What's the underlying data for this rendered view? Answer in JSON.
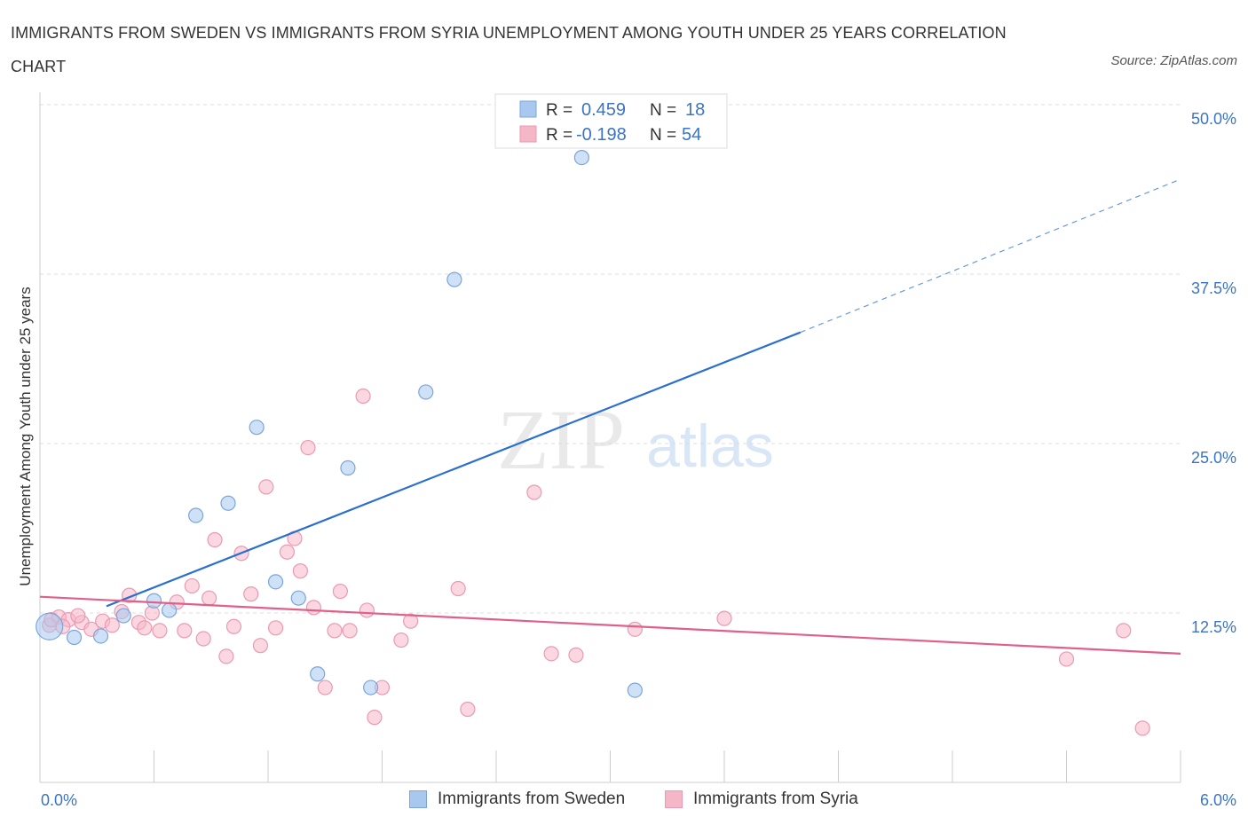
{
  "header": {
    "title": "IMMIGRANTS FROM SWEDEN VS IMMIGRANTS FROM SYRIA UNEMPLOYMENT AMONG YOUTH UNDER 25 YEARS CORRELATION CHART",
    "source": "Source: ZipAtlas.com"
  },
  "watermark": {
    "zip": "ZIP",
    "atlas": "atlas"
  },
  "stats": {
    "r_label": "R =",
    "n_label": "N =",
    "sweden": {
      "r": "0.459",
      "n": "18"
    },
    "syria": {
      "r": "-0.198",
      "n": "54"
    }
  },
  "colors": {
    "sweden_fill": "#a8c8f0",
    "sweden_stroke": "#7aa6dc",
    "sweden_line": "#2b6fce",
    "syria_fill": "#f5b6c8",
    "syria_stroke": "#ea9ab2",
    "syria_line": "#e0608a",
    "axis_label": "#3c74c4"
  },
  "chart_data": {
    "type": "scatter",
    "title": "IMMIGRANTS FROM SWEDEN VS IMMIGRANTS FROM SYRIA UNEMPLOYMENT AMONG YOUTH UNDER 25 YEARS CORRELATION CHART",
    "xlabel": "",
    "ylabel": "Unemployment Among Youth under 25 years",
    "xlim": [
      0,
      6
    ],
    "ylim": [
      0,
      50
    ],
    "x_tick_labels": [
      "0.0%",
      "6.0%"
    ],
    "y_ticks": [
      12.5,
      25,
      37.5,
      50
    ],
    "y_tick_labels": [
      "12.5%",
      "25.0%",
      "37.5%",
      "50.0%"
    ],
    "grid": "horizontal dashed",
    "legend_position": "bottom-center",
    "series": [
      {
        "name": "Immigrants from Sweden",
        "color": "#a8c8f0",
        "points": [
          [
            0.05,
            11.5
          ],
          [
            0.18,
            10.7
          ],
          [
            0.32,
            10.8
          ],
          [
            0.44,
            12.3
          ],
          [
            0.6,
            13.4
          ],
          [
            0.68,
            12.7
          ],
          [
            0.82,
            19.7
          ],
          [
            0.99,
            20.6
          ],
          [
            1.14,
            26.2
          ],
          [
            1.24,
            14.8
          ],
          [
            1.36,
            13.6
          ],
          [
            1.46,
            8.0
          ],
          [
            1.62,
            23.2
          ],
          [
            1.74,
            7.0
          ],
          [
            2.03,
            28.8
          ],
          [
            2.18,
            37.1
          ],
          [
            2.85,
            46.1
          ],
          [
            3.13,
            6.8
          ]
        ],
        "trend": {
          "x": [
            0.35,
            4.0,
            6.0
          ],
          "y": [
            13.0,
            33.2,
            44.5
          ],
          "solid_until": 4.0
        }
      },
      {
        "name": "Immigrants from Syria",
        "color": "#f5b6c8",
        "points": [
          [
            0.05,
            11.6
          ],
          [
            0.1,
            12.2
          ],
          [
            0.15,
            12.0
          ],
          [
            0.22,
            11.8
          ],
          [
            0.27,
            11.3
          ],
          [
            0.33,
            11.9
          ],
          [
            0.38,
            11.6
          ],
          [
            0.43,
            12.6
          ],
          [
            0.47,
            13.8
          ],
          [
            0.52,
            11.8
          ],
          [
            0.55,
            11.4
          ],
          [
            0.59,
            12.5
          ],
          [
            0.63,
            11.2
          ],
          [
            0.72,
            13.3
          ],
          [
            0.76,
            11.2
          ],
          [
            0.8,
            14.5
          ],
          [
            0.86,
            10.6
          ],
          [
            0.89,
            13.6
          ],
          [
            0.92,
            17.9
          ],
          [
            0.98,
            9.3
          ],
          [
            1.02,
            11.5
          ],
          [
            1.06,
            16.9
          ],
          [
            1.11,
            13.9
          ],
          [
            1.16,
            10.1
          ],
          [
            1.19,
            21.8
          ],
          [
            1.24,
            11.4
          ],
          [
            1.3,
            17.0
          ],
          [
            1.34,
            18.0
          ],
          [
            1.37,
            15.6
          ],
          [
            1.41,
            24.7
          ],
          [
            1.44,
            12.9
          ],
          [
            1.5,
            7.0
          ],
          [
            1.55,
            11.2
          ],
          [
            1.58,
            14.1
          ],
          [
            1.63,
            11.2
          ],
          [
            1.72,
            12.7
          ],
          [
            1.7,
            28.5
          ],
          [
            1.8,
            7.0
          ],
          [
            1.76,
            4.8
          ],
          [
            1.9,
            10.5
          ],
          [
            1.95,
            11.9
          ],
          [
            2.2,
            14.3
          ],
          [
            2.25,
            5.4
          ],
          [
            2.6,
            21.4
          ],
          [
            2.69,
            9.5
          ],
          [
            2.82,
            9.4
          ],
          [
            3.13,
            11.3
          ],
          [
            3.6,
            12.1
          ],
          [
            5.4,
            9.1
          ],
          [
            5.7,
            11.2
          ],
          [
            5.8,
            4.0
          ],
          [
            0.06,
            12.0
          ],
          [
            0.12,
            11.5
          ],
          [
            0.2,
            12.3
          ]
        ],
        "trend": {
          "x": [
            0.0,
            6.0
          ],
          "y": [
            13.7,
            9.5
          ]
        }
      }
    ]
  },
  "legend": {
    "items": [
      {
        "label": "Immigrants from Sweden"
      },
      {
        "label": "Immigrants from Syria"
      }
    ]
  }
}
